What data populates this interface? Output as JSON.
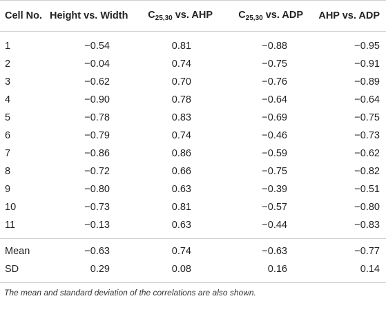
{
  "table": {
    "headers": {
      "cell": "Cell No.",
      "height_width": "Height vs. Width",
      "c_ahp_prefix": "C",
      "c_ahp_sub": "25,30",
      "c_ahp_suffix": " vs. AHP",
      "c_adp_prefix": "C",
      "c_adp_sub": "25,30",
      "c_adp_suffix": " vs. ADP",
      "ahp_adp": "AHP vs. ADP"
    },
    "rows": [
      [
        "1",
        "−0.54",
        "0.81",
        "−0.88",
        "−0.95"
      ],
      [
        "2",
        "−0.04",
        "0.74",
        "−0.75",
        "−0.91"
      ],
      [
        "3",
        "−0.62",
        "0.70",
        "−0.76",
        "−0.89"
      ],
      [
        "4",
        "−0.90",
        "0.78",
        "−0.64",
        "−0.64"
      ],
      [
        "5",
        "−0.78",
        "0.83",
        "−0.69",
        "−0.75"
      ],
      [
        "6",
        "−0.79",
        "0.74",
        "−0.46",
        "−0.73"
      ],
      [
        "7",
        "−0.86",
        "0.86",
        "−0.59",
        "−0.62"
      ],
      [
        "8",
        "−0.72",
        "0.66",
        "−0.75",
        "−0.82"
      ],
      [
        "9",
        "−0.80",
        "0.63",
        "−0.39",
        "−0.51"
      ],
      [
        "10",
        "−0.73",
        "0.81",
        "−0.57",
        "−0.80"
      ],
      [
        "11",
        "−0.13",
        "0.63",
        "−0.44",
        "−0.83"
      ]
    ],
    "stats": [
      [
        "Mean",
        "−0.63",
        "0.74",
        "−0.63",
        "−0.77"
      ],
      [
        "SD",
        "0.29",
        "0.08",
        "0.16",
        "0.14"
      ]
    ]
  },
  "footnote": "The mean and standard deviation of the correlations are also shown."
}
